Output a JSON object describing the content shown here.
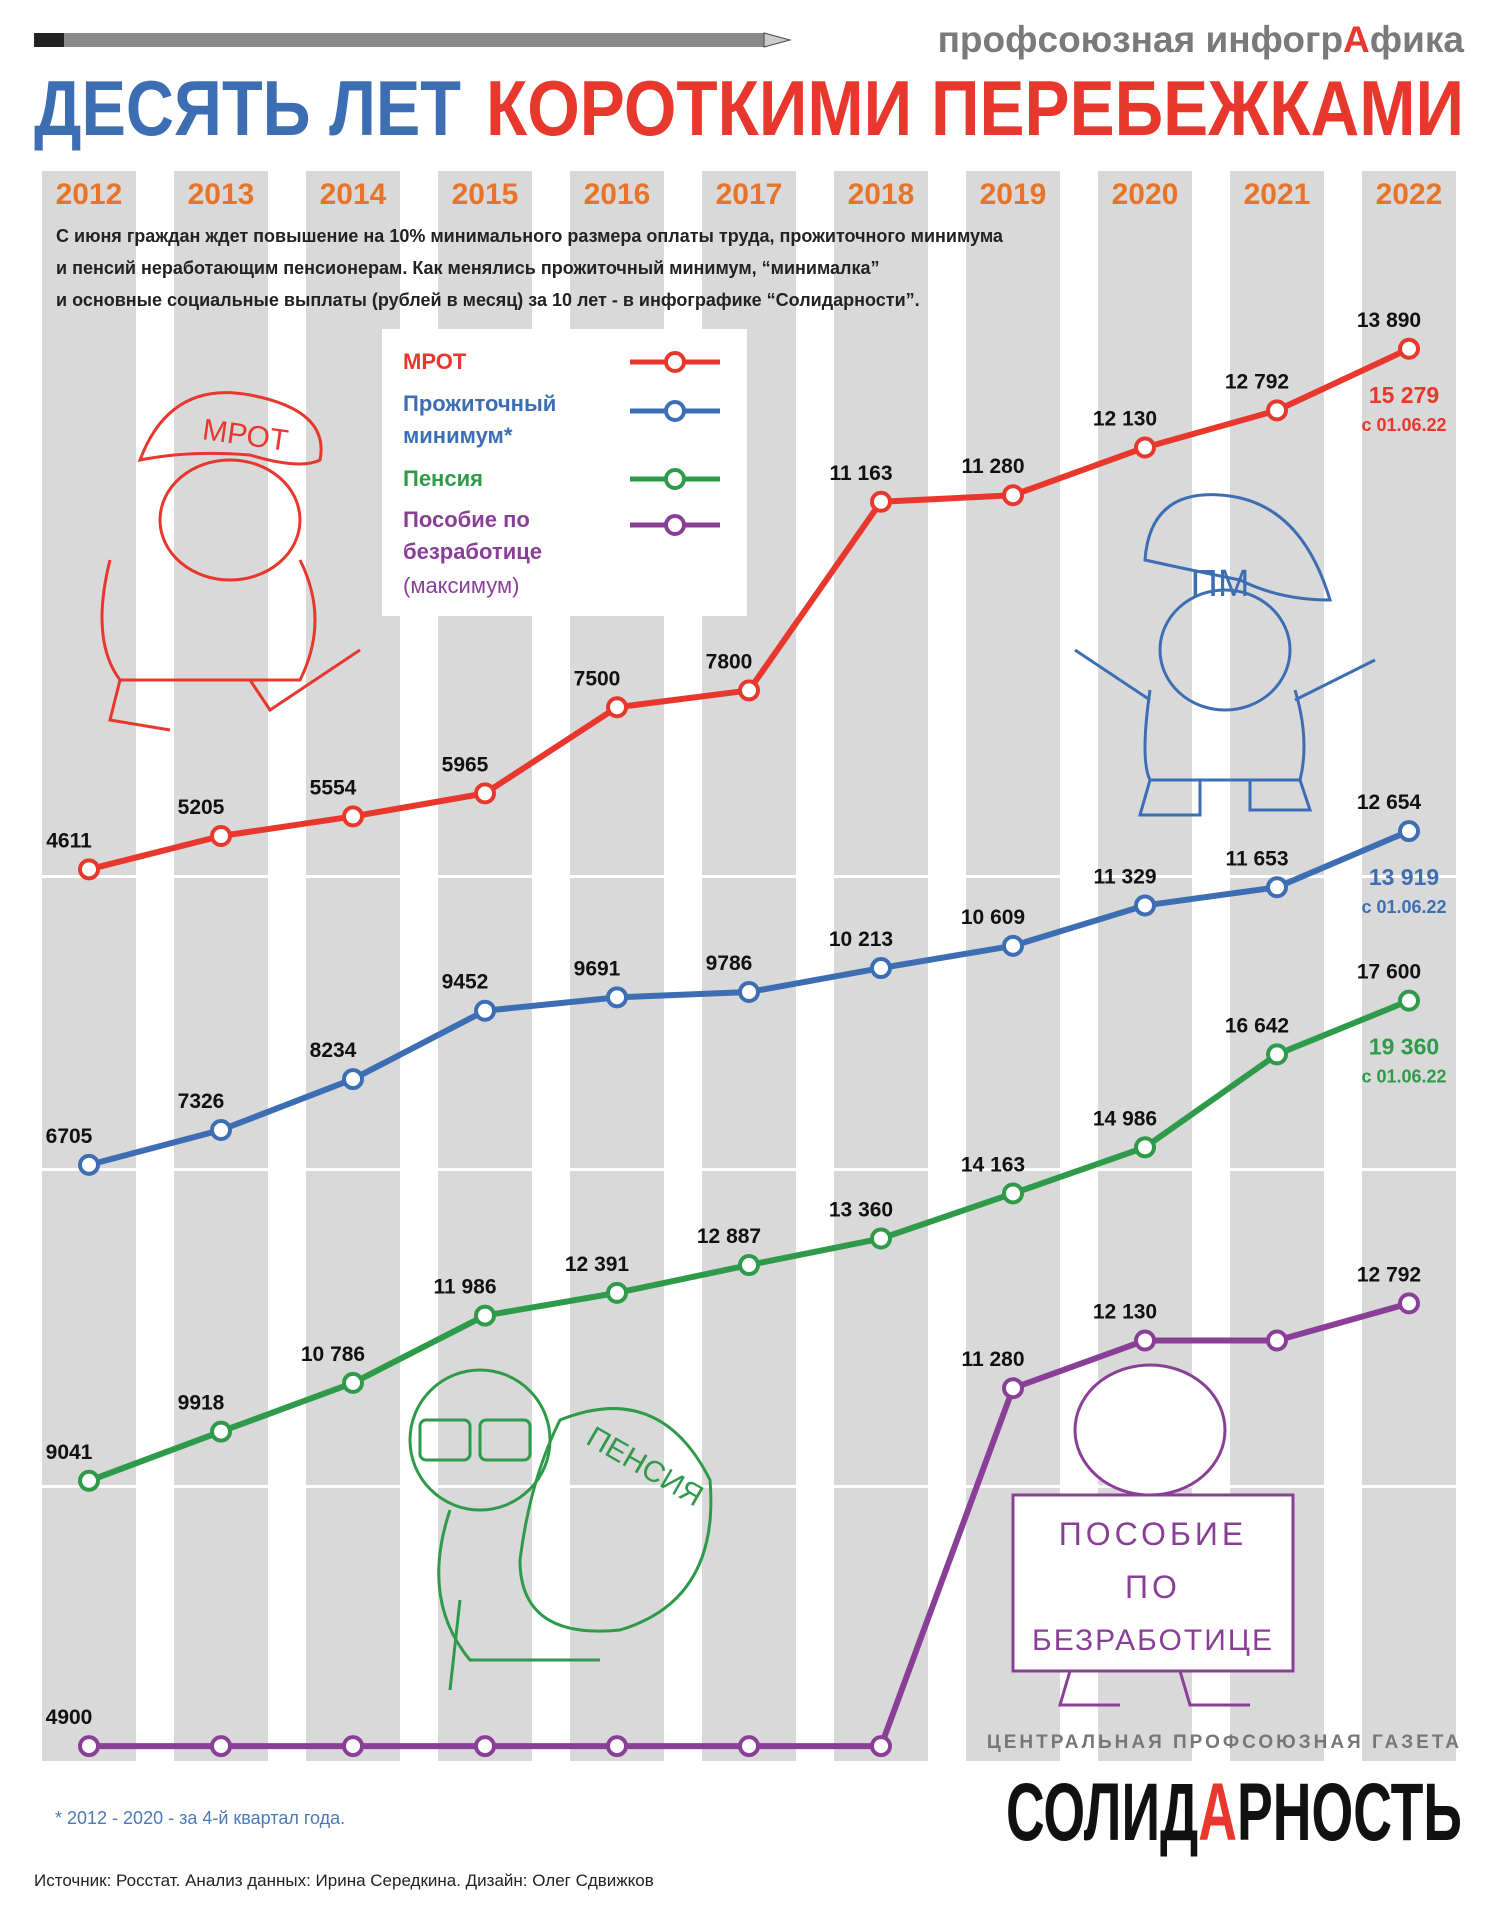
{
  "kicker": [
    "профсоюзная инфогр",
    "А",
    "фика"
  ],
  "chart_data": {
    "type": "line",
    "title": "ДЕСЯТЬ ЛЕТ",
    "title_highlight": "КОРОТКИМИ ПЕРЕБЕЖКАМИ",
    "subtitle": [
      "С июня граждан ждет повышение на 10% минимального размера оплаты труда, прожиточного минимума",
      "и пенсий неработающим пенсионерам. Как менялись прожиточный минимум, “минималка”",
      "и основные социальные выплаты (рублей в месяц) за 10 лет - в инфографике “Солидарности”."
    ],
    "categories": [
      "2012",
      "2013",
      "2014",
      "2015",
      "2016",
      "2017",
      "2018",
      "2019",
      "2020",
      "2021",
      "2022"
    ],
    "series": [
      {
        "name": "МРОТ",
        "color": "#e8372c",
        "values": [
          4611,
          5205,
          5554,
          5965,
          7500,
          7800,
          11163,
          11280,
          12130,
          12792,
          13890
        ],
        "value_labels": [
          "4611",
          "5205",
          "5554",
          "5965",
          "7500",
          "7800",
          "11 163",
          "11 280",
          "12 130",
          "12 792",
          "13 890"
        ],
        "annotation": {
          "text": "15 279",
          "note": "с 01.06.22"
        }
      },
      {
        "name": "Прожиточный минимум*",
        "color": "#3d6eb4",
        "values": [
          6705,
          7326,
          8234,
          9452,
          9691,
          9786,
          10213,
          10609,
          11329,
          11653,
          12654
        ],
        "value_labels": [
          "6705",
          "7326",
          "8234",
          "9452",
          "9691",
          "9786",
          "10 213",
          "10 609",
          "11 329",
          "11 653",
          "12 654"
        ],
        "annotation": {
          "text": "13 919",
          "note": "с 01.06.22"
        }
      },
      {
        "name": "Пенсия",
        "color": "#2e9a4a",
        "values": [
          9041,
          9918,
          10786,
          11986,
          12391,
          12887,
          13360,
          14163,
          14986,
          16642,
          17600
        ],
        "value_labels": [
          "9041",
          "9918",
          "10 786",
          "11 986",
          "12 391",
          "12 887",
          "13 360",
          "14 163",
          "14 986",
          "16 642",
          "17 600"
        ],
        "annotation": {
          "text": "19 360",
          "note": "с 01.06.22"
        }
      },
      {
        "name": "Пособие по безработице",
        "color": "#8a3f97",
        "legend_note": "(максимум)",
        "values": [
          4900,
          4900,
          4900,
          4900,
          4900,
          4900,
          4900,
          11280,
          12130,
          12130,
          12792
        ],
        "value_labels": [
          "4900",
          null,
          null,
          null,
          null,
          null,
          null,
          "11 280",
          "12 130",
          null,
          "12 792"
        ]
      }
    ],
    "footnote": "* 2012 - 2020 - за 4-й квартал года."
  },
  "cartoons": {
    "mrot": "МРОТ",
    "pm": "ПМ",
    "pension": "ПЕНСИЯ",
    "sign": [
      "ПОСОБИЕ",
      "ПО",
      "БЕЗРАБОТИЦЕ"
    ]
  },
  "brand": {
    "tagline": "ЦЕНТРАЛЬНАЯ ПРОФСОЮЗНАЯ ГАЗЕТА",
    "name": [
      "СОЛИД",
      "А",
      "РНОСТЬ"
    ]
  },
  "source": "Источник: Росстат. Анализ данных: Ирина Середкина. Дизайн: Олег Сдвижков"
}
